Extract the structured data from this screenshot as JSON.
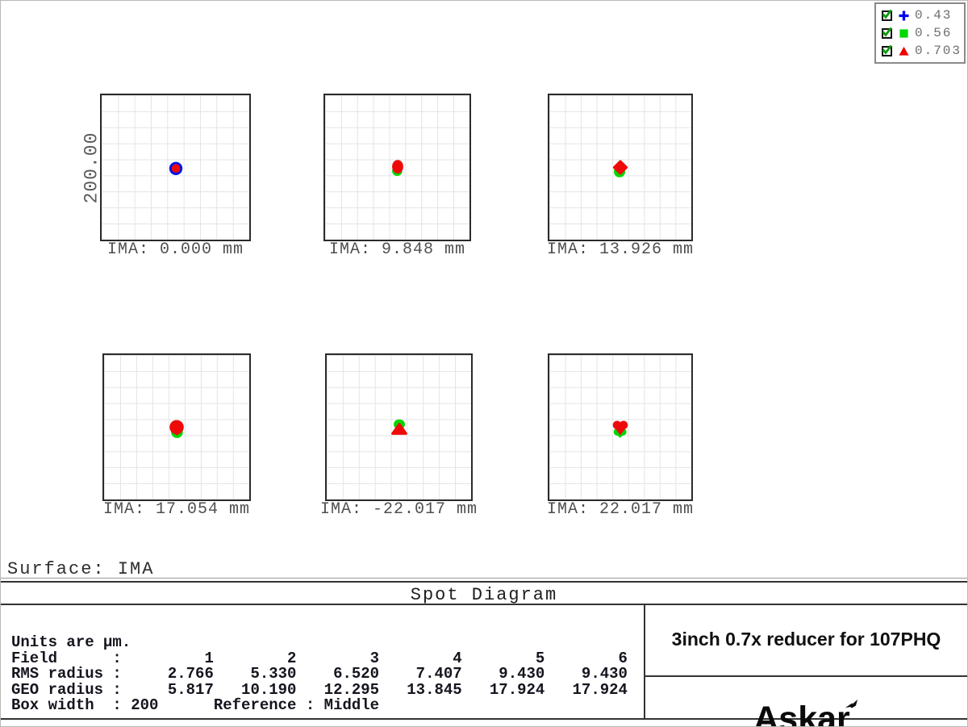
{
  "colors": {
    "blue": "#0014e6",
    "green": "#00d600",
    "red": "#ef0a0a",
    "check": "#0c9b0c",
    "grid": "#e4e4e4",
    "frame": "#2b2b2b"
  },
  "legend": {
    "items": [
      {
        "checked": true,
        "symbol": "plus",
        "color": "#0000f0",
        "label": "0.43"
      },
      {
        "checked": true,
        "symbol": "square",
        "color": "#00d600",
        "label": "0.56"
      },
      {
        "checked": true,
        "symbol": "triangle",
        "color": "#ee0000",
        "label": "0.703"
      }
    ]
  },
  "axis": {
    "scale_label": "200.00"
  },
  "boxes": [
    {
      "field": 1,
      "ima_label": "IMA: 0.000 mm",
      "spot_type": "ring"
    },
    {
      "field": 2,
      "ima_label": "IMA: 9.848 mm",
      "spot_type": "f2"
    },
    {
      "field": 3,
      "ima_label": "IMA: 13.926 mm",
      "spot_type": "f3"
    },
    {
      "field": 4,
      "ima_label": "IMA: 17.054 mm",
      "spot_type": "f4"
    },
    {
      "field": 5,
      "ima_label": "IMA: -22.017 mm",
      "spot_type": "f5"
    },
    {
      "field": 6,
      "ima_label": "IMA: 22.017 mm",
      "spot_type": "f6"
    }
  ],
  "surface_label": "Surface: IMA",
  "title": "Spot Diagram",
  "table": {
    "units_line": "Units are µm.",
    "field_label": "Field",
    "field_numbers": [
      1,
      2,
      3,
      4,
      5,
      6
    ],
    "rms_label": "RMS radius",
    "rms_values": [
      2.766,
      5.33,
      6.52,
      7.407,
      9.43,
      9.43
    ],
    "geo_label": "GEO radius",
    "geo_values": [
      5.817,
      10.19,
      12.295,
      13.845,
      17.924,
      17.924
    ],
    "box_width_label": "Box width",
    "box_width_value": "200",
    "reference_label": "Reference",
    "reference_value": "Middle"
  },
  "footer": {
    "product_title": "3inch 0.7x reducer for 107PHQ",
    "brand": "Askar"
  },
  "chart_data": {
    "type": "scatter",
    "title": "Spot Diagram",
    "surface": "IMA",
    "units": "µm",
    "wavelengths_um": [
      0.43,
      0.56,
      0.703
    ],
    "wavelength_markers": [
      "blue plus",
      "green square",
      "red triangle"
    ],
    "box_width_um": 200,
    "reference": "Middle",
    "scale_bar_label": "200.00",
    "fields": [
      {
        "field": 1,
        "ima_mm": 0.0,
        "rms_radius_um": 2.766,
        "geo_radius_um": 5.817
      },
      {
        "field": 2,
        "ima_mm": 9.848,
        "rms_radius_um": 5.33,
        "geo_radius_um": 10.19
      },
      {
        "field": 3,
        "ima_mm": 13.926,
        "rms_radius_um": 6.52,
        "geo_radius_um": 12.295
      },
      {
        "field": 4,
        "ima_mm": 17.054,
        "rms_radius_um": 7.407,
        "geo_radius_um": 13.845
      },
      {
        "field": 5,
        "ima_mm": -22.017,
        "rms_radius_um": 9.43,
        "geo_radius_um": 17.924
      },
      {
        "field": 6,
        "ima_mm": 22.017,
        "rms_radius_um": 9.43,
        "geo_radius_um": 17.924
      }
    ]
  }
}
